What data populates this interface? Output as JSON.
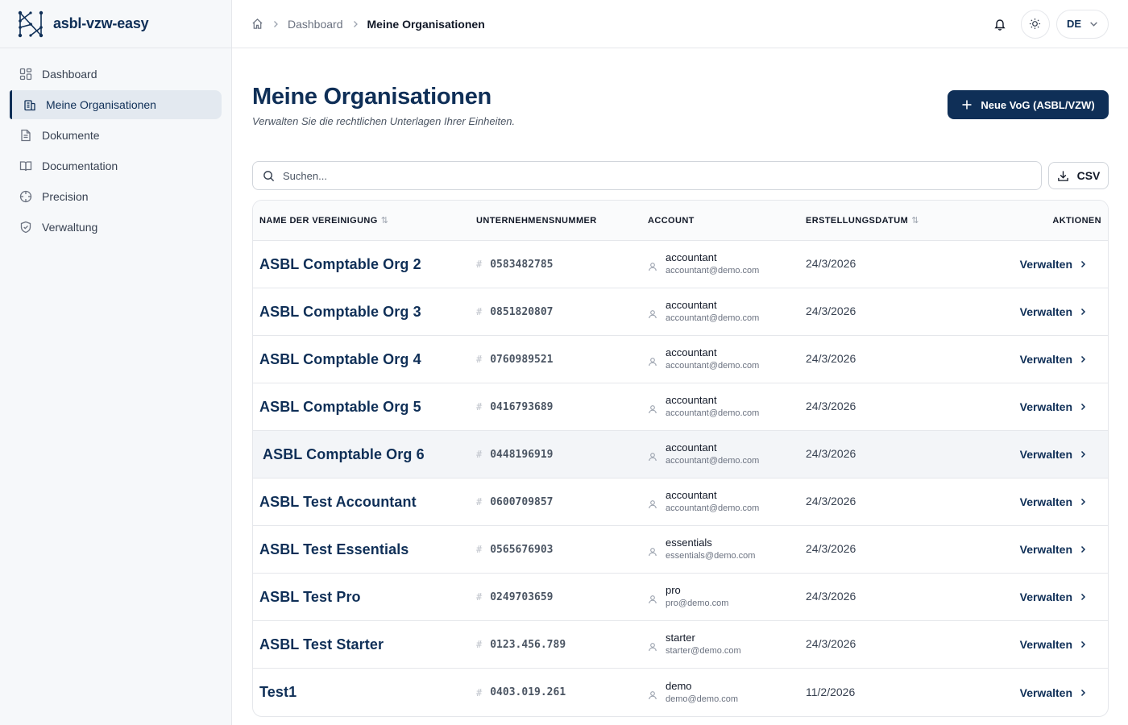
{
  "brand": {
    "name": "asbl-vzw-easy"
  },
  "sidebar": {
    "items": [
      {
        "label": "Dashboard",
        "icon": "dashboard-grid-icon",
        "active": false
      },
      {
        "label": "Meine Organisationen",
        "icon": "building-icon",
        "active": true
      },
      {
        "label": "Dokumente",
        "icon": "document-icon",
        "active": false
      },
      {
        "label": "Documentation",
        "icon": "book-icon",
        "active": false
      },
      {
        "label": "Precision",
        "icon": "crosshair-icon",
        "active": false
      },
      {
        "label": "Verwaltung",
        "icon": "shield-icon",
        "active": false
      }
    ]
  },
  "header": {
    "breadcrumb": {
      "home_icon": "home-icon",
      "items": [
        "Dashboard",
        "Meine Organisationen"
      ]
    },
    "language": "DE"
  },
  "main": {
    "title": "Meine Organisationen",
    "subtitle": "Verwalten Sie die rechtlichen Unterlagen Ihrer Einheiten.",
    "new_button_label": "Neue VoG (ASBL/VZW)",
    "search_placeholder": "Suchen...",
    "csv_label": "CSV"
  },
  "table": {
    "columns": [
      "NAME DER VEREINIGUNG",
      "UNTERNEHMENSNUMMER",
      "ACCOUNT",
      "ERSTELLUNGSDATUM",
      "AKTIONEN"
    ],
    "sort_icon": "⇅",
    "action_label": "Verwalten",
    "rows": [
      {
        "name": "ASBL Comptable Org 2",
        "number": "0583482785",
        "account": "accountant",
        "email": "accountant@demo.com",
        "date": "24/3/2026"
      },
      {
        "name": "ASBL Comptable Org 3",
        "number": "0851820807",
        "account": "accountant",
        "email": "accountant@demo.com",
        "date": "24/3/2026"
      },
      {
        "name": "ASBL Comptable Org 4",
        "number": "0760989521",
        "account": "accountant",
        "email": "accountant@demo.com",
        "date": "24/3/2026"
      },
      {
        "name": "ASBL Comptable Org 5",
        "number": "0416793689",
        "account": "accountant",
        "email": "accountant@demo.com",
        "date": "24/3/2026"
      },
      {
        "name": "ASBL Comptable Org 6",
        "number": "0448196919",
        "account": "accountant",
        "email": "accountant@demo.com",
        "date": "24/3/2026"
      },
      {
        "name": "ASBL Test Accountant",
        "number": "0600709857",
        "account": "accountant",
        "email": "accountant@demo.com",
        "date": "24/3/2026"
      },
      {
        "name": "ASBL Test Essentials",
        "number": "0565676903",
        "account": "essentials",
        "email": "essentials@demo.com",
        "date": "24/3/2026"
      },
      {
        "name": "ASBL Test Pro",
        "number": "0249703659",
        "account": "pro",
        "email": "pro@demo.com",
        "date": "24/3/2026"
      },
      {
        "name": "ASBL Test Starter",
        "number": "0123.456.789",
        "account": "starter",
        "email": "starter@demo.com",
        "date": "24/3/2026"
      },
      {
        "name": "Test1",
        "number": "0403.019.261",
        "account": "demo",
        "email": "demo@demo.com",
        "date": "11/2/2026"
      }
    ]
  },
  "colors": {
    "brand": "#0f2f57",
    "active_bg": "#e3e9f0",
    "border": "#e5e7eb"
  }
}
